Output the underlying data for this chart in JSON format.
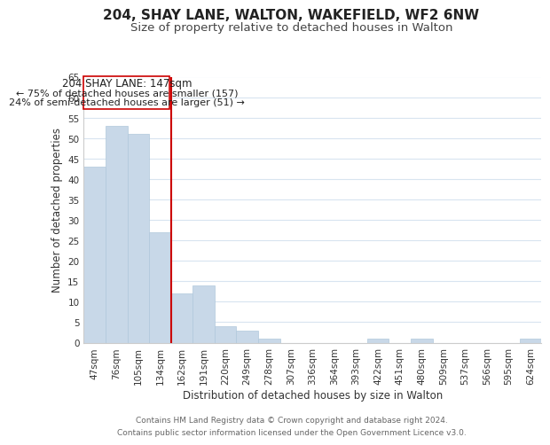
{
  "title": "204, SHAY LANE, WALTON, WAKEFIELD, WF2 6NW",
  "subtitle": "Size of property relative to detached houses in Walton",
  "xlabel": "Distribution of detached houses by size in Walton",
  "ylabel": "Number of detached properties",
  "bar_labels": [
    "47sqm",
    "76sqm",
    "105sqm",
    "134sqm",
    "162sqm",
    "191sqm",
    "220sqm",
    "249sqm",
    "278sqm",
    "307sqm",
    "336sqm",
    "364sqm",
    "393sqm",
    "422sqm",
    "451sqm",
    "480sqm",
    "509sqm",
    "537sqm",
    "566sqm",
    "595sqm",
    "624sqm"
  ],
  "bar_values": [
    43,
    53,
    51,
    27,
    12,
    14,
    4,
    3,
    1,
    0,
    0,
    0,
    0,
    1,
    0,
    1,
    0,
    0,
    0,
    0,
    1
  ],
  "bar_color": "#c8d8e8",
  "bar_edge_color": "#b0c8dc",
  "vline_x": 3.5,
  "vline_color": "#cc0000",
  "ylim": [
    0,
    65
  ],
  "yticks": [
    0,
    5,
    10,
    15,
    20,
    25,
    30,
    35,
    40,
    45,
    50,
    55,
    60,
    65
  ],
  "annotation_line1": "204 SHAY LANE: 147sqm",
  "annotation_line2": "← 75% of detached houses are smaller (157)",
  "annotation_line3": "24% of semi-detached houses are larger (51) →",
  "annotation_box_color": "#ffffff",
  "annotation_box_edge": "#cc0000",
  "footer_line1": "Contains HM Land Registry data © Crown copyright and database right 2024.",
  "footer_line2": "Contains public sector information licensed under the Open Government Licence v3.0.",
  "background_color": "#ffffff",
  "grid_color": "#d8e4f0",
  "title_fontsize": 11,
  "subtitle_fontsize": 9.5,
  "axis_label_fontsize": 8.5,
  "tick_fontsize": 7.5,
  "annotation_fontsize": 8.5,
  "footer_fontsize": 6.5
}
